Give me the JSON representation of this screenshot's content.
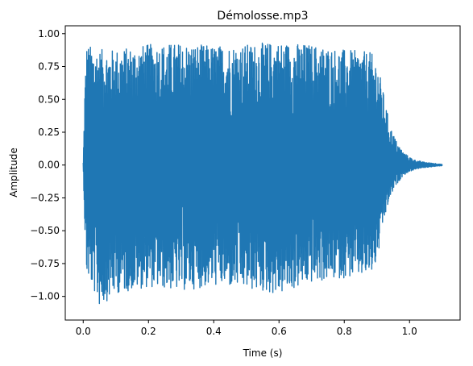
{
  "chart_data": {
    "type": "line",
    "title": "Démolosse.mp3",
    "xlabel": "Time (s)",
    "ylabel": "Amplitude",
    "xlim": [
      -0.055,
      1.155
    ],
    "ylim": [
      -1.18,
      1.06
    ],
    "x_ticks": [
      {
        "value": 0.0,
        "label": "0.0"
      },
      {
        "value": 0.2,
        "label": "0.2"
      },
      {
        "value": 0.4,
        "label": "0.4"
      },
      {
        "value": 0.6,
        "label": "0.6"
      },
      {
        "value": 0.8,
        "label": "0.8"
      },
      {
        "value": 1.0,
        "label": "1.0"
      }
    ],
    "y_ticks": [
      {
        "value": 1.0,
        "label": "1.00"
      },
      {
        "value": 0.75,
        "label": "0.75"
      },
      {
        "value": 0.5,
        "label": "0.50"
      },
      {
        "value": 0.25,
        "label": "0.25"
      },
      {
        "value": 0.0,
        "label": "0.00"
      },
      {
        "value": -0.25,
        "label": "−0.25"
      },
      {
        "value": -0.5,
        "label": "−0.50"
      },
      {
        "value": -0.75,
        "label": "−0.75"
      },
      {
        "value": -1.0,
        "label": "−1.00"
      }
    ],
    "grid": false,
    "series": [
      {
        "color": "#1f77b4",
        "duration": 1.1,
        "envelope": {
          "x": [
            0.0,
            0.005,
            0.01,
            0.03,
            0.05,
            0.1,
            0.2,
            0.3,
            0.4,
            0.5,
            0.6,
            0.7,
            0.8,
            0.88,
            0.9,
            0.92,
            0.94,
            0.96,
            0.98,
            1.0,
            1.02,
            1.05,
            1.08,
            1.1
          ],
          "upper": [
            0.02,
            0.6,
            0.92,
            0.9,
            0.88,
            0.88,
            0.92,
            0.93,
            0.91,
            0.92,
            0.94,
            0.92,
            0.88,
            0.86,
            0.8,
            0.55,
            0.3,
            0.18,
            0.1,
            0.06,
            0.035,
            0.02,
            0.012,
            0.005
          ],
          "lower": [
            -0.02,
            -0.5,
            -0.84,
            -0.95,
            -1.08,
            -0.98,
            -0.93,
            -0.96,
            -0.92,
            -0.95,
            -0.99,
            -0.9,
            -0.86,
            -0.85,
            -0.75,
            -0.45,
            -0.25,
            -0.15,
            -0.08,
            -0.05,
            -0.03,
            -0.018,
            -0.01,
            -0.005
          ]
        }
      }
    ]
  }
}
